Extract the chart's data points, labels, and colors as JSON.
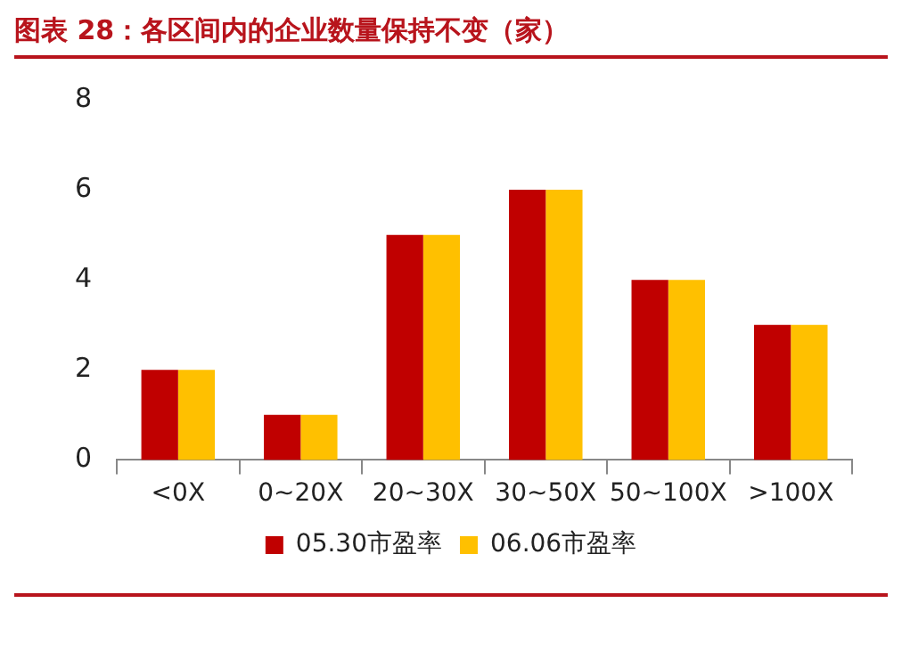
{
  "chart_data": {
    "type": "bar",
    "title": "图表 28：各区间内的企业数量保持不变（家）",
    "categories": [
      "<0X",
      "0~20X",
      "20~30X",
      "30~50X",
      "50~100X",
      ">100X"
    ],
    "series": [
      {
        "name": "05.30市盈率",
        "color": "#c00000",
        "values": [
          2,
          1,
          5,
          6,
          4,
          3
        ]
      },
      {
        "name": "06.06市盈率",
        "color": "#ffc000",
        "values": [
          2,
          1,
          5,
          6,
          4,
          3
        ]
      }
    ],
    "ylim": [
      0,
      8
    ],
    "yticks": [
      0,
      2,
      4,
      6,
      8
    ],
    "grid": false,
    "legend": "bottom"
  }
}
